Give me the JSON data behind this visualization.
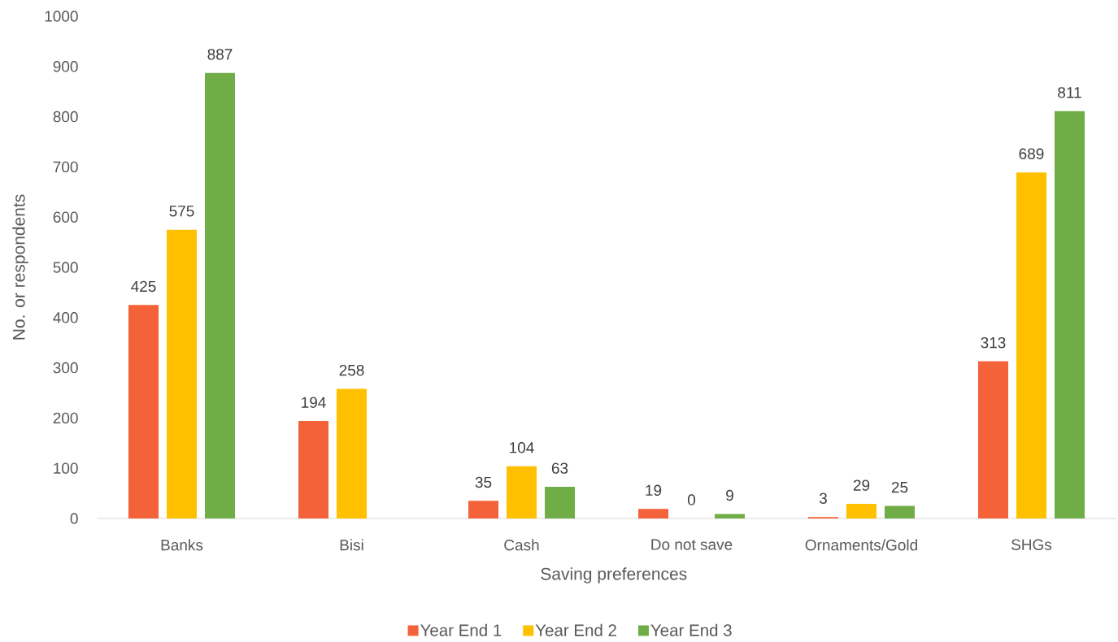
{
  "chart_data": {
    "type": "bar",
    "xlabel": "Saving preferences",
    "ylabel": "No. or respondents",
    "categories": [
      "Banks",
      "Bisi",
      "Cash",
      "Do not save",
      "Ornaments/Gold",
      "SHGs"
    ],
    "series": [
      {
        "name": "Year End 1",
        "color": "#f4623a",
        "values": [
          425,
          194,
          35,
          19,
          3,
          313
        ]
      },
      {
        "name": "Year End 2",
        "color": "#ffc000",
        "values": [
          575,
          258,
          104,
          0,
          29,
          689
        ]
      },
      {
        "name": "Year End 3",
        "color": "#70ad47",
        "values": [
          887,
          null,
          63,
          9,
          25,
          811
        ]
      }
    ],
    "ylim": [
      0,
      1000
    ],
    "yticks": [
      0,
      100,
      200,
      300,
      400,
      500,
      600,
      700,
      800,
      900,
      1000
    ],
    "data_labels": true,
    "legend": "bottom"
  }
}
